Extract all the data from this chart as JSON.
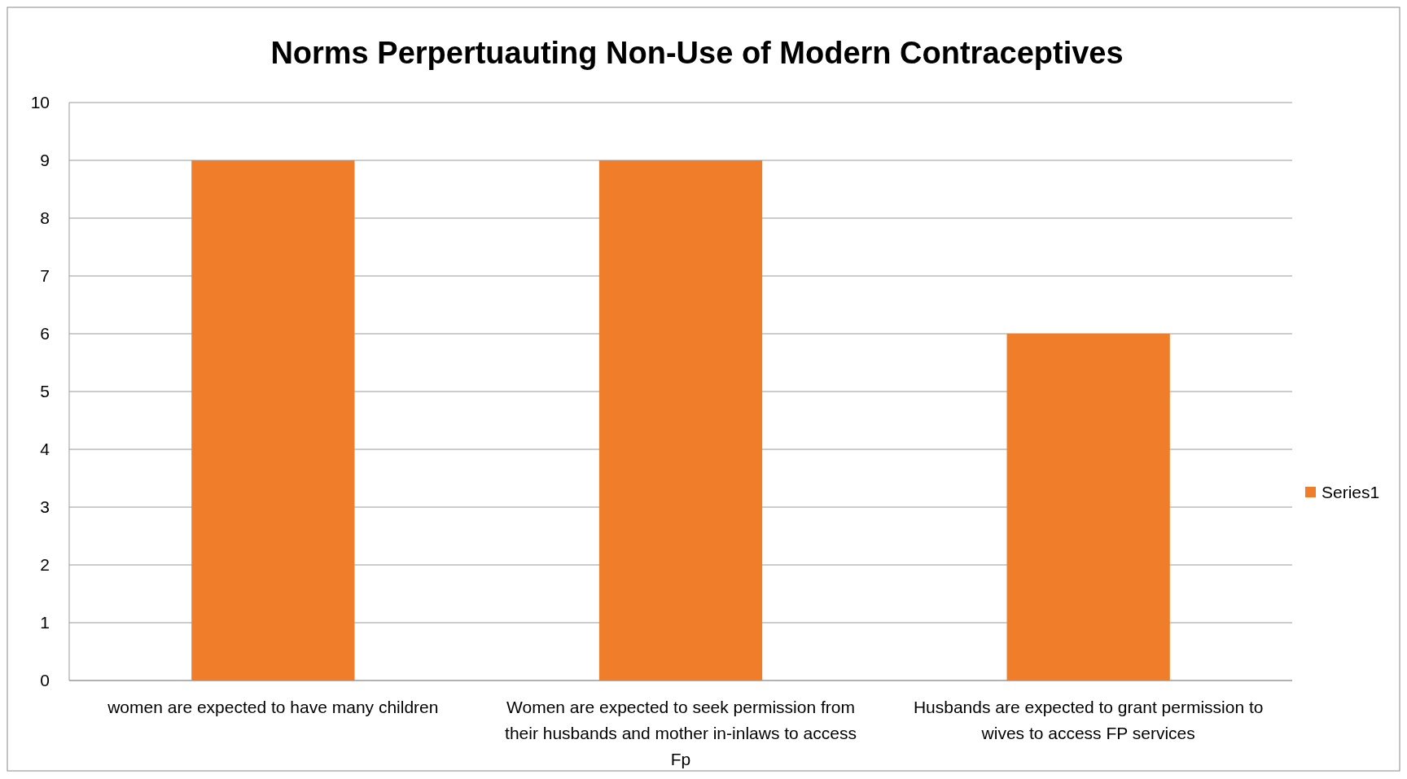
{
  "chart_data": {
    "type": "bar",
    "title": "Norms Perpertuauting Non-Use of Modern Contraceptives",
    "categories": [
      "women are expected to have many children",
      "Women are expected to seek permission from their husbands and mother in-inlaws to access Fp",
      "Husbands are expected to grant permission to wives to access FP services"
    ],
    "series": [
      {
        "name": "Series1",
        "color": "#f07d2a",
        "values": [
          9,
          9,
          6
        ]
      }
    ],
    "ylim": [
      0,
      10
    ],
    "yticks": [
      0,
      1,
      2,
      3,
      4,
      5,
      6,
      7,
      8,
      9,
      10
    ],
    "grid": "y",
    "legend": "right"
  }
}
